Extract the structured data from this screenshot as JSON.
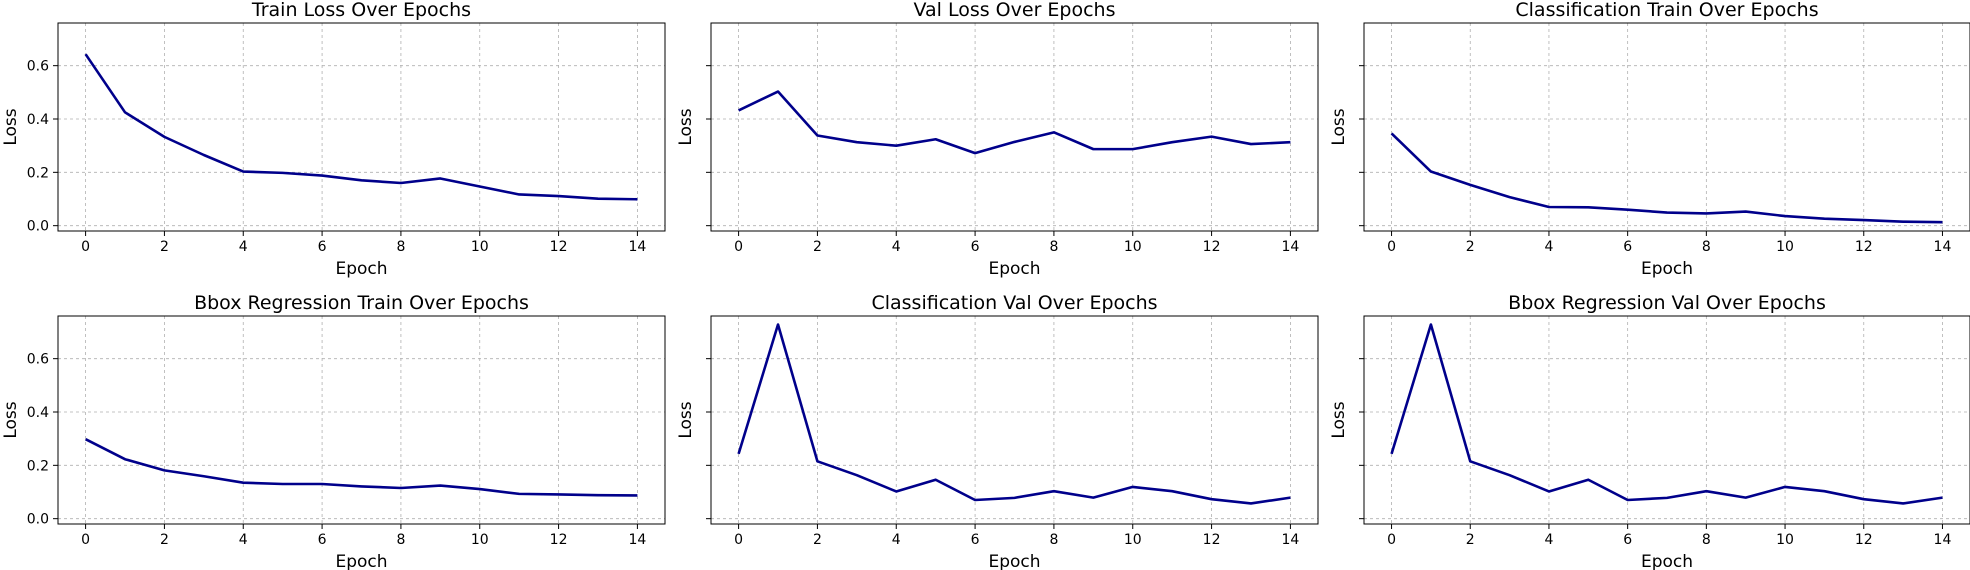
{
  "chart_data": [
    {
      "type": "line",
      "title": "Train Loss Over Epochs",
      "xlabel": "Epoch",
      "ylabel": "Loss",
      "x": [
        0,
        1,
        2,
        3,
        4,
        5,
        6,
        7,
        8,
        9,
        10,
        11,
        12,
        13,
        14
      ],
      "series": [
        {
          "values": [
            0.643,
            0.425,
            0.333,
            0.265,
            0.203,
            0.198,
            0.188,
            0.17,
            0.16,
            0.177,
            0.147,
            0.117,
            0.111,
            0.101,
            0.099
          ],
          "color": "#00008b"
        }
      ],
      "xlim": [
        -0.7,
        14.7
      ],
      "ylim": [
        -0.02,
        0.76
      ],
      "xticks": [
        "0",
        "2",
        "4",
        "6",
        "8",
        "10",
        "12",
        "14"
      ],
      "yticks": [
        "0.0",
        "0.2",
        "0.4",
        "0.6"
      ],
      "grid": true
    },
    {
      "type": "line",
      "title": "Val Loss Over Epochs",
      "xlabel": "Epoch",
      "ylabel": "Loss",
      "x": [
        0,
        1,
        2,
        3,
        4,
        5,
        6,
        7,
        8,
        9,
        10,
        11,
        12,
        13,
        14
      ],
      "series": [
        {
          "values": [
            0.432,
            0.503,
            0.338,
            0.313,
            0.3,
            0.324,
            0.272,
            0.314,
            0.35,
            0.287,
            0.287,
            0.313,
            0.334,
            0.306,
            0.313
          ],
          "color": "#00008b"
        }
      ],
      "xlim": [
        -0.7,
        14.7
      ],
      "ylim": [
        -0.02,
        0.76
      ],
      "xticks": [
        "0",
        "2",
        "4",
        "6",
        "8",
        "10",
        "12",
        "14"
      ],
      "yticks": [
        "",
        "",
        "",
        ""
      ],
      "grid": true
    },
    {
      "type": "line",
      "title": "Classification Train Over Epochs",
      "xlabel": "Epoch",
      "ylabel": "Loss",
      "x": [
        0,
        1,
        2,
        3,
        4,
        5,
        6,
        7,
        8,
        9,
        10,
        11,
        12,
        13,
        14
      ],
      "series": [
        {
          "values": [
            0.346,
            0.203,
            0.153,
            0.107,
            0.07,
            0.069,
            0.06,
            0.049,
            0.046,
            0.053,
            0.036,
            0.026,
            0.021,
            0.015,
            0.013
          ],
          "color": "#00008b"
        }
      ],
      "xlim": [
        -0.7,
        14.7
      ],
      "ylim": [
        -0.02,
        0.76
      ],
      "xticks": [
        "0",
        "2",
        "4",
        "6",
        "8",
        "10",
        "12",
        "14"
      ],
      "yticks": [
        "",
        "",
        "",
        ""
      ],
      "grid": true
    },
    {
      "type": "line",
      "title": "Bbox Regression Train Over Epochs",
      "xlabel": "Epoch",
      "ylabel": "Loss",
      "x": [
        0,
        1,
        2,
        3,
        4,
        5,
        6,
        7,
        8,
        9,
        10,
        11,
        12,
        13,
        14
      ],
      "series": [
        {
          "values": [
            0.298,
            0.223,
            0.181,
            0.159,
            0.135,
            0.13,
            0.13,
            0.121,
            0.115,
            0.124,
            0.111,
            0.093,
            0.091,
            0.088,
            0.087
          ],
          "color": "#00008b"
        }
      ],
      "xlim": [
        -0.7,
        14.7
      ],
      "ylim": [
        -0.02,
        0.76
      ],
      "xticks": [
        "0",
        "2",
        "4",
        "6",
        "8",
        "10",
        "12",
        "14"
      ],
      "yticks": [
        "0.0",
        "0.2",
        "0.4",
        "0.6"
      ],
      "grid": true
    },
    {
      "type": "line",
      "title": "Classification Val Over Epochs",
      "xlabel": "Epoch",
      "ylabel": "Loss",
      "x": [
        0,
        1,
        2,
        3,
        4,
        5,
        6,
        7,
        8,
        9,
        10,
        11,
        12,
        13,
        14
      ],
      "series": [
        {
          "values": [
            0.243,
            0.728,
            0.215,
            0.163,
            0.102,
            0.146,
            0.07,
            0.078,
            0.103,
            0.079,
            0.119,
            0.103,
            0.073,
            0.057,
            0.079
          ],
          "color": "#00008b"
        }
      ],
      "xlim": [
        -0.7,
        14.7
      ],
      "ylim": [
        -0.02,
        0.76
      ],
      "xticks": [
        "0",
        "2",
        "4",
        "6",
        "8",
        "10",
        "12",
        "14"
      ],
      "yticks": [
        "",
        "",
        "",
        ""
      ],
      "grid": true
    },
    {
      "type": "line",
      "title": "Bbox Regression Val Over Epochs",
      "xlabel": "Epoch",
      "ylabel": "Loss",
      "x": [
        0,
        1,
        2,
        3,
        4,
        5,
        6,
        7,
        8,
        9,
        10,
        11,
        12,
        13,
        14
      ],
      "series": [
        {
          "values": [
            0.243,
            0.728,
            0.215,
            0.163,
            0.102,
            0.146,
            0.07,
            0.078,
            0.103,
            0.079,
            0.119,
            0.103,
            0.073,
            0.057,
            0.079
          ],
          "color": "#00008b"
        }
      ],
      "xlim": [
        -0.7,
        14.7
      ],
      "ylim": [
        -0.02,
        0.76
      ],
      "xticks": [
        "0",
        "2",
        "4",
        "6",
        "8",
        "10",
        "12",
        "14"
      ],
      "yticks": [
        "",
        "",
        "",
        ""
      ],
      "grid": true
    }
  ]
}
